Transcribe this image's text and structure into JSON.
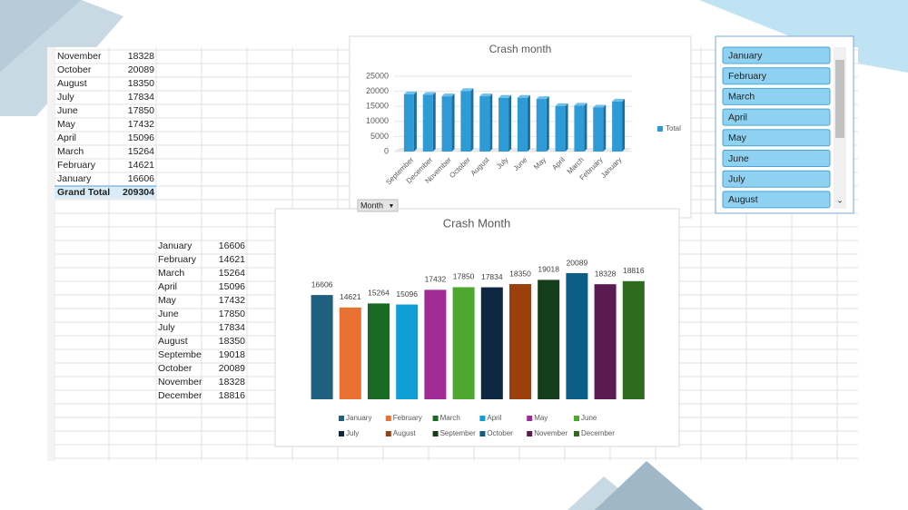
{
  "pivot_table": {
    "rows": [
      [
        "November",
        18328
      ],
      [
        "October",
        20089
      ],
      [
        "August",
        18350
      ],
      [
        "July",
        17834
      ],
      [
        "June",
        17850
      ],
      [
        "May",
        17432
      ],
      [
        "April",
        15096
      ],
      [
        "March",
        15264
      ],
      [
        "February",
        14621
      ],
      [
        "January",
        16606
      ]
    ],
    "total_label": "Grand Total",
    "total": 209304
  },
  "month_table": {
    "rows": [
      [
        "January",
        16606
      ],
      [
        "February",
        14621
      ],
      [
        "March",
        15264
      ],
      [
        "April",
        15096
      ],
      [
        "May",
        17432
      ],
      [
        "June",
        17850
      ],
      [
        "July",
        17834
      ],
      [
        "August",
        18350
      ],
      [
        "September",
        19018
      ],
      [
        "October",
        20089
      ],
      [
        "November",
        18328
      ],
      [
        "December",
        18816
      ]
    ]
  },
  "filter_button": "Month",
  "slicer": {
    "items": [
      "January",
      "February",
      "March",
      "April",
      "May",
      "June",
      "July",
      "August"
    ]
  },
  "chart_data": [
    {
      "type": "bar3d",
      "title": "Crash month",
      "categories": [
        "September",
        "December",
        "November",
        "October",
        "August",
        "July",
        "June",
        "May",
        "April",
        "March",
        "February",
        "January"
      ],
      "series": [
        {
          "name": "Total",
          "color": "#2e9bd6",
          "values": [
            19018,
            18816,
            18328,
            20089,
            18350,
            17834,
            17850,
            17432,
            15096,
            15264,
            14621,
            16606
          ]
        }
      ],
      "ylim": [
        0,
        25000
      ],
      "yticks": [
        0,
        5000,
        10000,
        15000,
        20000,
        25000
      ],
      "grid": true,
      "legend": "right"
    },
    {
      "type": "bar",
      "title": "Crash Month",
      "categories": [
        "January",
        "February",
        "March",
        "April",
        "May",
        "June",
        "July",
        "August",
        "September",
        "October",
        "November",
        "December"
      ],
      "values": [
        16606,
        14621,
        15264,
        15096,
        17432,
        17850,
        17834,
        18350,
        19018,
        20089,
        18328,
        18816
      ],
      "colors": [
        "#1f5f80",
        "#e97132",
        "#196b24",
        "#0f9ed5",
        "#a02b93",
        "#4ea72e",
        "#0e2841",
        "#9c3f0f",
        "#143d1a",
        "#0b5f86",
        "#5c1a53",
        "#2e6b1e"
      ],
      "data_labels": true,
      "legend": "bottom"
    }
  ]
}
